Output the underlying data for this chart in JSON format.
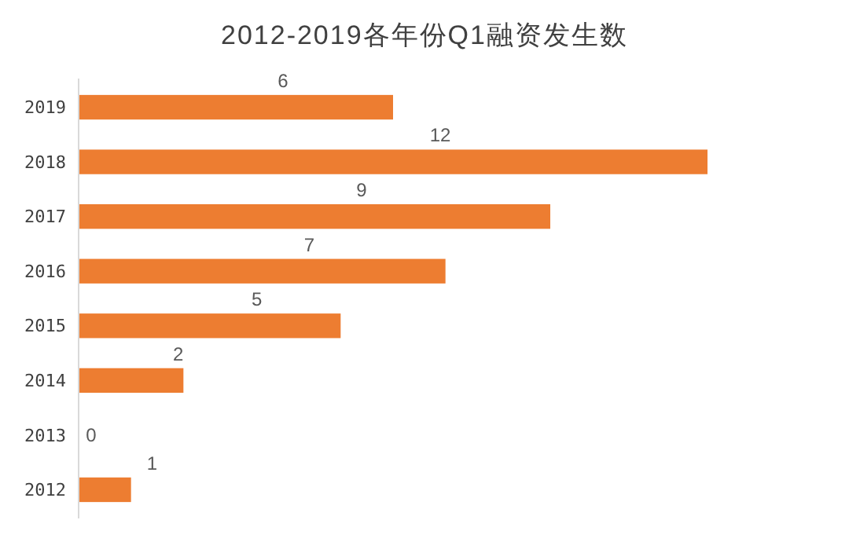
{
  "chart_data": {
    "type": "bar",
    "orientation": "horizontal",
    "title": "2012-2019各年份Q1融资发生数",
    "categories": [
      "2019",
      "2018",
      "2017",
      "2016",
      "2015",
      "2014",
      "2013",
      "2012"
    ],
    "values": [
      6,
      12,
      9,
      7,
      5,
      2,
      0,
      1
    ],
    "color": "#ed7d31",
    "data_labels": true,
    "grid": false
  }
}
